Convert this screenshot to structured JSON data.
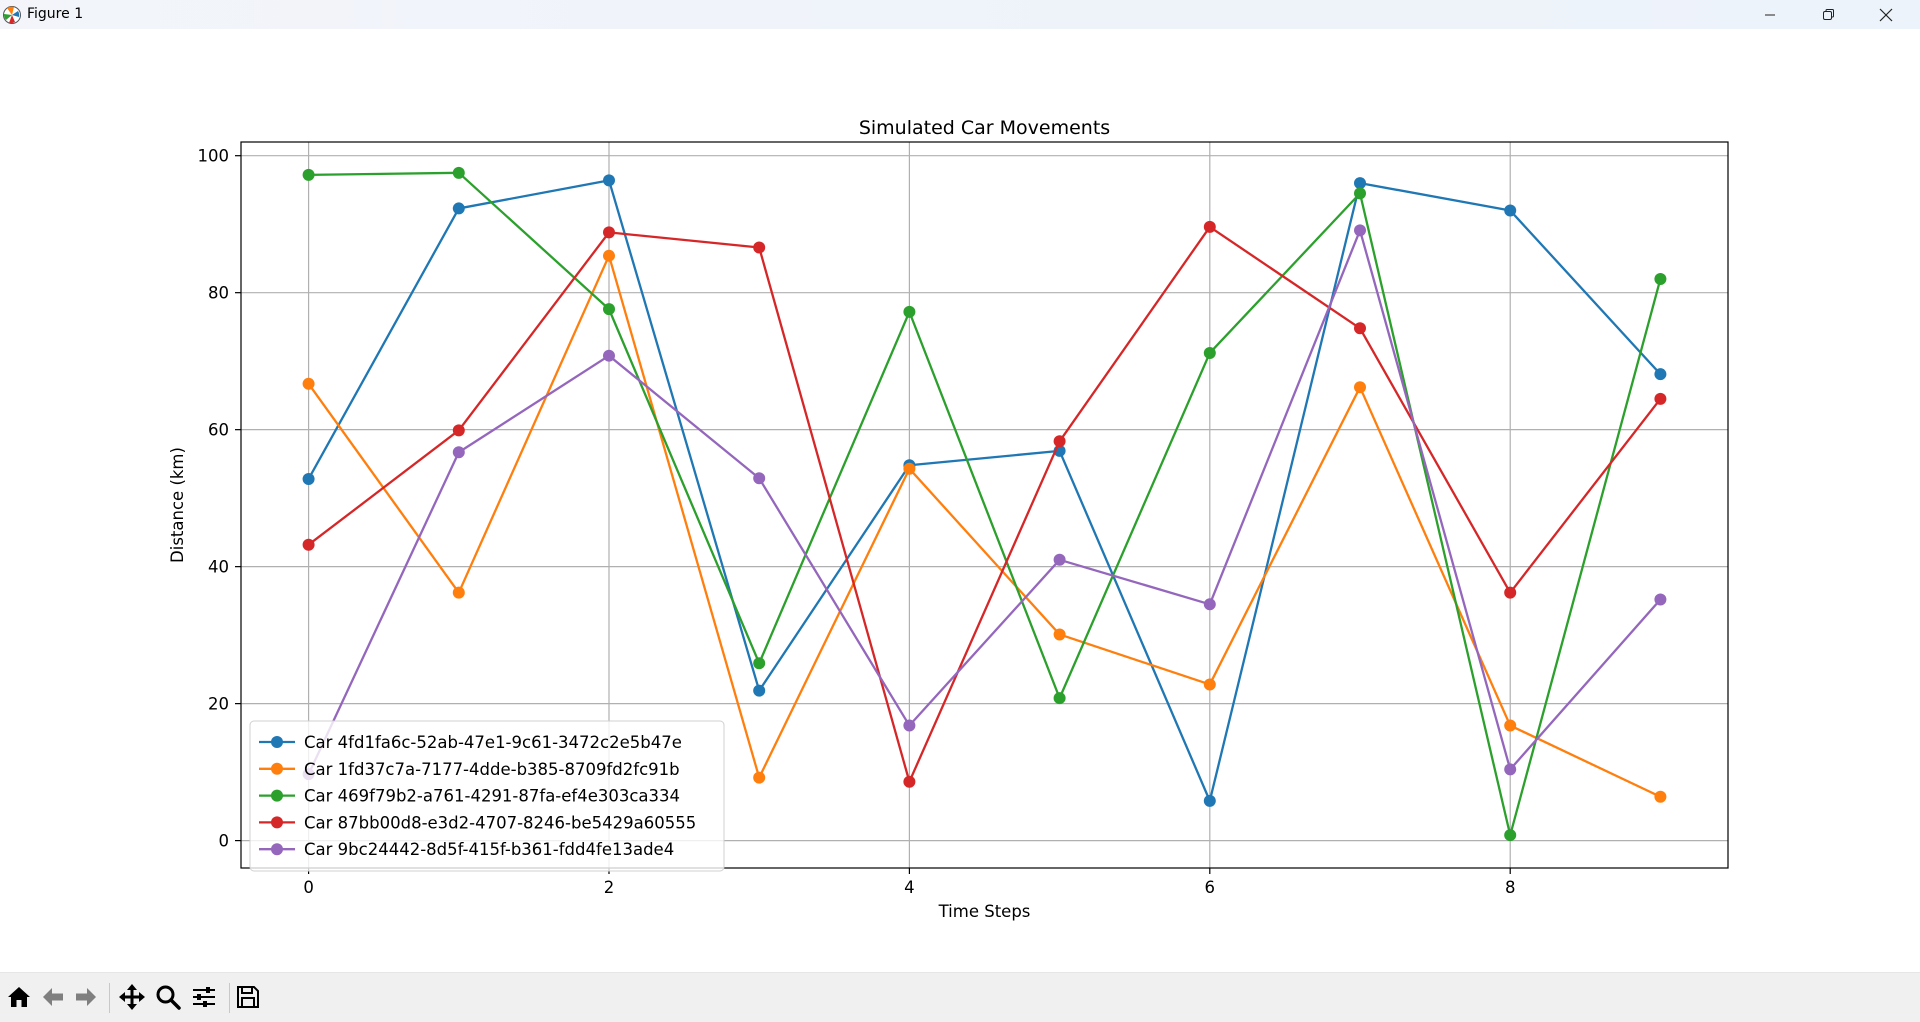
{
  "window": {
    "title": "Figure 1",
    "icons": {
      "app": "matplotlib-icon",
      "minimize": "minimize-icon",
      "restore": "restore-icon",
      "close": "close-icon"
    }
  },
  "toolbar": {
    "tools": [
      "home-icon",
      "back-arrow-icon",
      "forward-arrow-icon",
      "pan-icon",
      "zoom-icon",
      "configure-subplots-icon",
      "save-icon"
    ]
  },
  "chart_data": {
    "type": "line",
    "title": "Simulated Car Movements",
    "xlabel": "Time Steps",
    "ylabel": "Distance (km)",
    "x": [
      0,
      1,
      2,
      3,
      4,
      5,
      6,
      7,
      8,
      9
    ],
    "xlim": [
      -0.45,
      9.45
    ],
    "ylim": [
      -4,
      102
    ],
    "xticks": [
      0,
      2,
      4,
      6,
      8
    ],
    "yticks": [
      0,
      20,
      40,
      60,
      80,
      100
    ],
    "grid": true,
    "legend": "lower-left",
    "series": [
      {
        "name": "Car 4fd1fa6c-52ab-47e1-9c61-3472c2e5b47e",
        "color": "#1f77b4",
        "values": [
          52.8,
          92.3,
          96.4,
          21.9,
          54.8,
          56.9,
          5.8,
          96.0,
          92.0,
          68.1
        ]
      },
      {
        "name": "Car 1fd37c7a-7177-4dde-b385-8709fd2fc91b",
        "color": "#ff7f0e",
        "values": [
          66.7,
          36.2,
          85.4,
          9.2,
          54.3,
          30.1,
          22.8,
          66.2,
          16.8,
          6.4
        ]
      },
      {
        "name": "Car 469f79b2-a761-4291-87fa-ef4e303ca334",
        "color": "#2ca02c",
        "values": [
          97.2,
          97.5,
          77.6,
          25.9,
          77.2,
          20.8,
          71.2,
          94.5,
          0.8,
          82.0
        ]
      },
      {
        "name": "Car 87bb00d8-e3d2-4707-8246-be5429a60555",
        "color": "#d62728",
        "values": [
          43.2,
          59.9,
          88.8,
          86.6,
          8.6,
          58.3,
          89.6,
          74.8,
          36.2,
          64.5
        ]
      },
      {
        "name": "Car 9bc24442-8d5f-415f-b361-fdd4fe13ade4",
        "color": "#9467bd",
        "values": [
          9.7,
          56.7,
          70.8,
          52.9,
          16.8,
          41.0,
          34.5,
          89.1,
          10.4,
          35.2
        ]
      }
    ]
  }
}
